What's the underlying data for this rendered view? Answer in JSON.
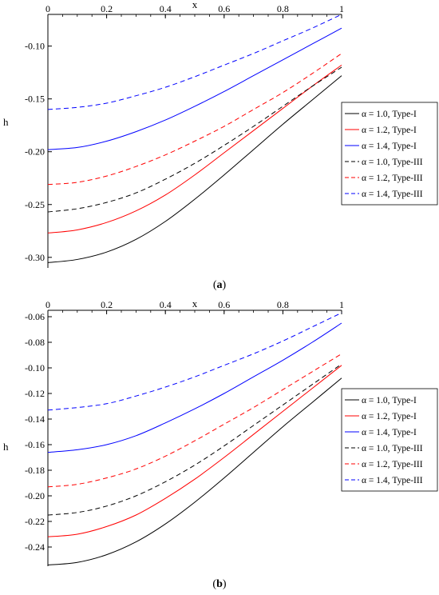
{
  "chart_data": [
    {
      "type": "line",
      "caption_open": "(",
      "caption_letter": "a",
      "caption_close": ")",
      "xlabel": "x",
      "ylabel": "h",
      "xlim": [
        0,
        1
      ],
      "ylim": [
        -0.31,
        -0.07
      ],
      "xticks": [
        "0",
        "0.2",
        "0.4",
        "0.6",
        "0.8",
        "1"
      ],
      "yticks": [
        "-0.10",
        "-0.15",
        "-0.20",
        "-0.25",
        "-0.30"
      ],
      "legend_position": "right",
      "x": [
        0,
        0.1,
        0.2,
        0.3,
        0.4,
        0.5,
        0.6,
        0.7,
        0.8,
        0.9,
        1.0
      ],
      "series": [
        {
          "name": "α = 1.0, Type-I",
          "color": "#000000",
          "dash": "solid",
          "values": [
            -0.305,
            -0.302,
            -0.295,
            -0.283,
            -0.266,
            -0.245,
            -0.222,
            -0.198,
            -0.174,
            -0.151,
            -0.128
          ]
        },
        {
          "name": "α = 1.2, Type-I",
          "color": "#ff0000",
          "dash": "solid",
          "values": [
            -0.277,
            -0.274,
            -0.267,
            -0.256,
            -0.241,
            -0.222,
            -0.201,
            -0.18,
            -0.159,
            -0.138,
            -0.118
          ]
        },
        {
          "name": "α = 1.4, Type-I",
          "color": "#0000ff",
          "dash": "solid",
          "values": [
            -0.198,
            -0.196,
            -0.19,
            -0.181,
            -0.17,
            -0.157,
            -0.143,
            -0.128,
            -0.113,
            -0.098,
            -0.083
          ]
        },
        {
          "name": "α = 1.0, Type-III",
          "color": "#000000",
          "dash": "dashed",
          "values": [
            -0.257,
            -0.254,
            -0.248,
            -0.239,
            -0.226,
            -0.211,
            -0.194,
            -0.176,
            -0.157,
            -0.138,
            -0.12
          ]
        },
        {
          "name": "α = 1.2, Type-III",
          "color": "#ff0000",
          "dash": "dashed",
          "values": [
            -0.231,
            -0.229,
            -0.223,
            -0.214,
            -0.203,
            -0.19,
            -0.176,
            -0.16,
            -0.144,
            -0.126,
            -0.107
          ]
        },
        {
          "name": "α = 1.4, Type-III",
          "color": "#0000ff",
          "dash": "dashed",
          "values": [
            -0.16,
            -0.158,
            -0.154,
            -0.147,
            -0.139,
            -0.129,
            -0.118,
            -0.107,
            -0.095,
            -0.083,
            -0.07
          ]
        }
      ]
    },
    {
      "type": "line",
      "caption_open": "(",
      "caption_letter": "b",
      "caption_close": ")",
      "xlabel": "x",
      "ylabel": "h",
      "xlim": [
        0,
        1
      ],
      "ylim": [
        -0.255,
        -0.055
      ],
      "xticks": [
        "0",
        "0.2",
        "0.4",
        "0.6",
        "0.8",
        "1"
      ],
      "yticks": [
        "-0.06",
        "-0.08",
        "-0.10",
        "-0.12",
        "-0.14",
        "-0.16",
        "-0.18",
        "-0.20",
        "-0.22",
        "-0.24"
      ],
      "legend_position": "right",
      "x": [
        0,
        0.1,
        0.2,
        0.3,
        0.4,
        0.5,
        0.6,
        0.7,
        0.8,
        0.9,
        1.0
      ],
      "series": [
        {
          "name": "α = 1.0, Type-I",
          "color": "#000000",
          "dash": "solid",
          "values": [
            -0.254,
            -0.252,
            -0.246,
            -0.236,
            -0.222,
            -0.205,
            -0.186,
            -0.166,
            -0.146,
            -0.127,
            -0.108
          ]
        },
        {
          "name": "α = 1.2, Type-I",
          "color": "#ff0000",
          "dash": "solid",
          "values": [
            -0.232,
            -0.23,
            -0.224,
            -0.215,
            -0.202,
            -0.187,
            -0.17,
            -0.152,
            -0.134,
            -0.116,
            -0.098
          ]
        },
        {
          "name": "α = 1.4, Type-I",
          "color": "#0000ff",
          "dash": "solid",
          "values": [
            -0.166,
            -0.164,
            -0.16,
            -0.153,
            -0.143,
            -0.132,
            -0.12,
            -0.107,
            -0.094,
            -0.08,
            -0.065
          ]
        },
        {
          "name": "α = 1.0, Type-III",
          "color": "#000000",
          "dash": "dashed",
          "values": [
            -0.215,
            -0.213,
            -0.208,
            -0.2,
            -0.189,
            -0.176,
            -0.161,
            -0.145,
            -0.129,
            -0.113,
            -0.097
          ]
        },
        {
          "name": "α = 1.2, Type-III",
          "color": "#ff0000",
          "dash": "dashed",
          "values": [
            -0.193,
            -0.191,
            -0.186,
            -0.179,
            -0.169,
            -0.157,
            -0.144,
            -0.131,
            -0.117,
            -0.103,
            -0.089
          ]
        },
        {
          "name": "α = 1.4, Type-III",
          "color": "#0000ff",
          "dash": "dashed",
          "values": [
            -0.133,
            -0.131,
            -0.128,
            -0.122,
            -0.115,
            -0.107,
            -0.098,
            -0.089,
            -0.079,
            -0.068,
            -0.057
          ]
        }
      ]
    }
  ]
}
